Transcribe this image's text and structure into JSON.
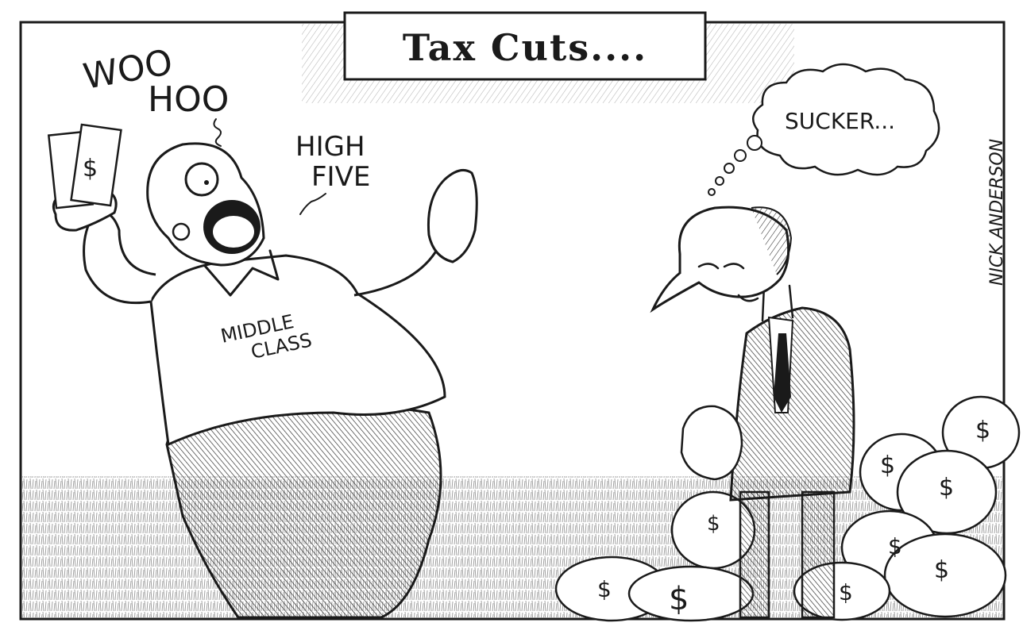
{
  "title": "Tax Cuts....",
  "speech": {
    "woo": "WOO",
    "hoo": "HOO",
    "high": "HIGH",
    "five": "FIVE",
    "sucker": "SUCKER..."
  },
  "shirt": {
    "line1": "MIDDLE",
    "line2": "CLASS"
  },
  "money_sign": "$",
  "signature": "NICK ANDERSON",
  "colors": {
    "ink": "#1a1a1a",
    "paper": "#ffffff"
  }
}
